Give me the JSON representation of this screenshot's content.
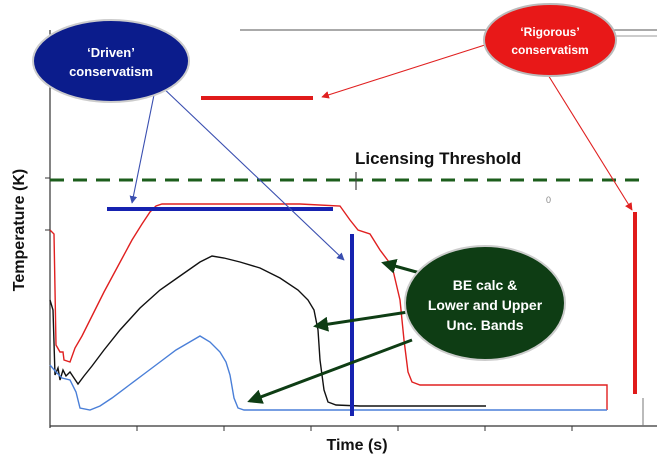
{
  "diagram": {
    "threshold_label": "Licensing Threshold",
    "y_axis_label": "Temperature (K)",
    "x_axis_label": "Time (s)",
    "stray_mark": "0",
    "callouts": {
      "driven": {
        "line1": "‘Driven’",
        "line2": "conservatism"
      },
      "rigorous": {
        "line1": "‘Rigorous’",
        "line2": "conservatism"
      },
      "be_calc": {
        "line1": "BE calc &",
        "line2": "Lower and Upper",
        "line3": "Unc. Bands"
      }
    },
    "colors": {
      "upper_band": "#e02020",
      "be_calc": "#111111",
      "lower_band": "#4a7fd8",
      "threshold": "#1c5e1c",
      "driven_bubble": "#0b1c8c",
      "rigorous_bubble": "#e81818",
      "be_bubble": "#0e3d14",
      "driven_bar": "#1622b0",
      "rigorous_bar": "#e01a1a"
    }
  }
}
